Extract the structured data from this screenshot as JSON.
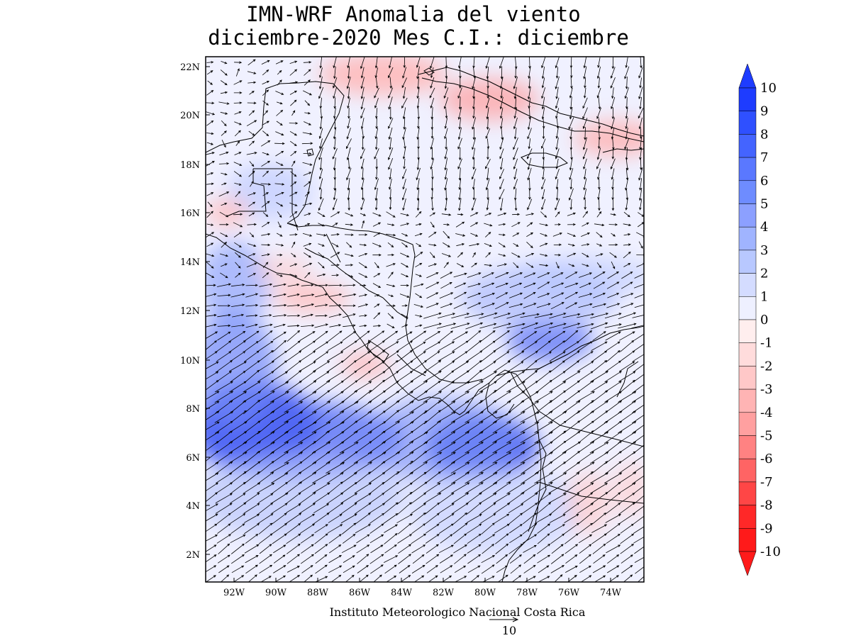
{
  "title_line1": "IMN-WRF Anomalia del viento",
  "title_line2": "diciembre-2020 Mes C.I.: diciembre",
  "credit": "Instituto Meteorologico Nacional Costa Rica",
  "reference_vector_label": "10",
  "lat_ticks": [
    "2N",
    "4N",
    "6N",
    "8N",
    "10N",
    "12N",
    "14N",
    "16N",
    "18N",
    "20N",
    "22N"
  ],
  "lon_ticks": [
    "92W",
    "90W",
    "88W",
    "86W",
    "84W",
    "82W",
    "80W",
    "78W",
    "76W",
    "74W"
  ],
  "colorbar": {
    "labels": [
      "10",
      "9",
      "8",
      "7",
      "6",
      "5",
      "4",
      "3",
      "2",
      "1",
      "0",
      "-1",
      "-2",
      "-3",
      "-4",
      "-5",
      "-6",
      "-7",
      "-8",
      "-9",
      "-10"
    ],
    "colors": [
      "#1e3cff",
      "#2f50ff",
      "#4464ff",
      "#5a78ff",
      "#6e8cff",
      "#8ca0ff",
      "#a0b4ff",
      "#b8c8ff",
      "#d4dcff",
      "#eef0ff",
      "#ffeeee",
      "#ffdcdc",
      "#ffc8c8",
      "#ffb4b4",
      "#ffa0a0",
      "#ff8282",
      "#ff6464",
      "#ff4646",
      "#ff2828",
      "#ff1a1a"
    ],
    "top_arrow_color": "#1e3cff",
    "bottom_arrow_color": "#ff1a1a"
  }
}
